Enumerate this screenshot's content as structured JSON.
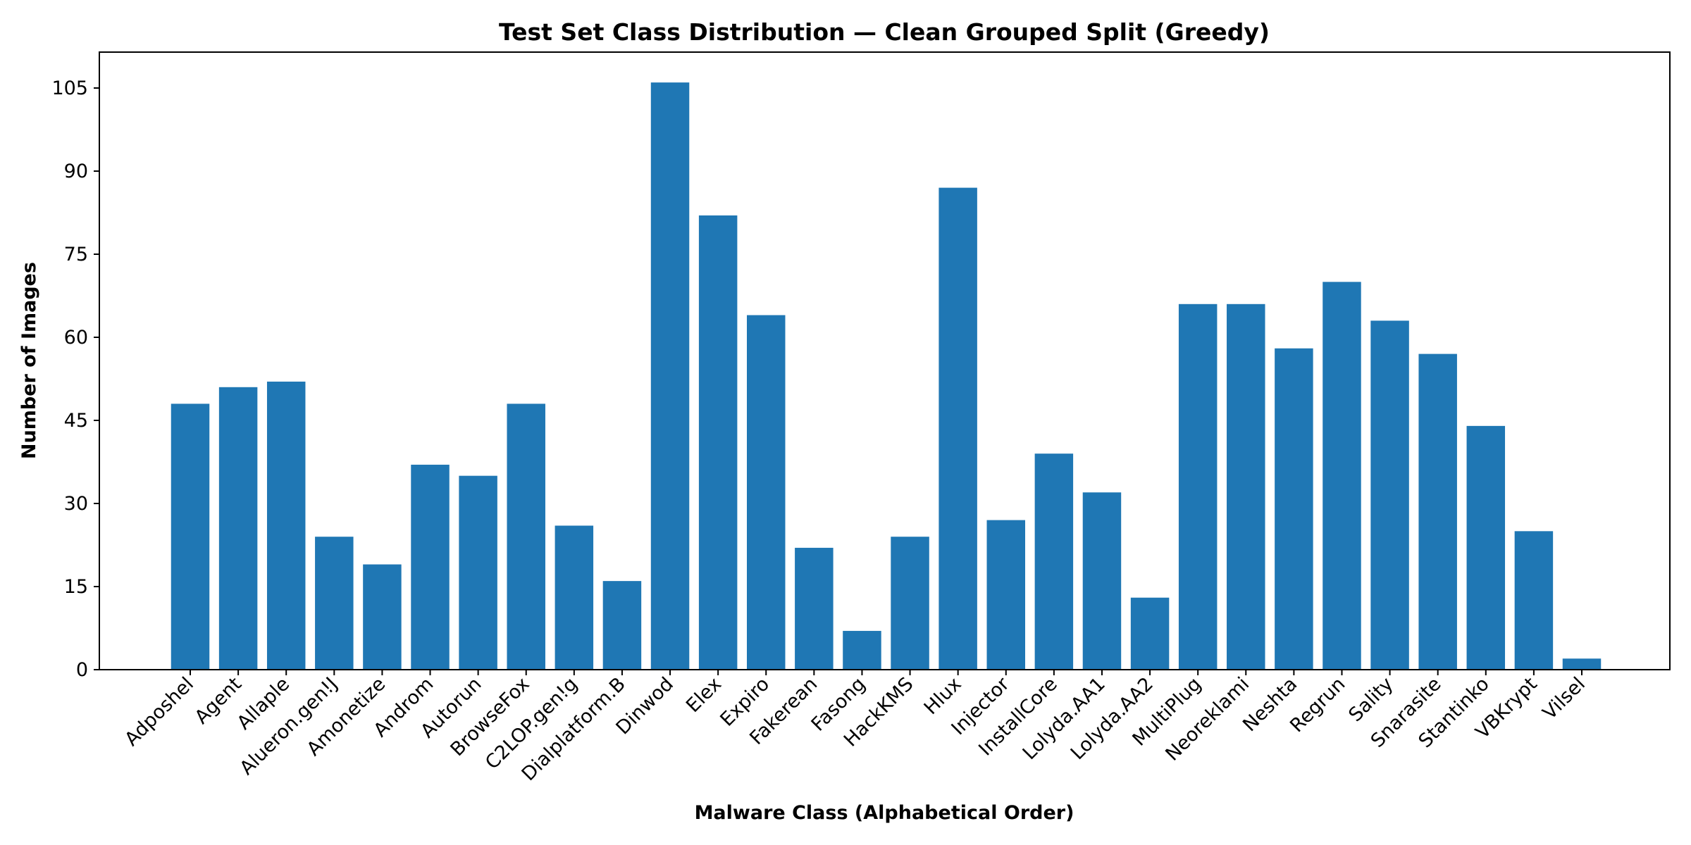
{
  "chart_data": {
    "type": "bar",
    "title": "Test Set Class Distribution — Clean Grouped Split (Greedy)",
    "xlabel": "Malware Class (Alphabetical Order)",
    "ylabel": "Number of Images",
    "ylim": [
      0,
      112
    ],
    "yticks": [
      0,
      15,
      30,
      45,
      60,
      75,
      90,
      105
    ],
    "bar_color": "#1f77b4",
    "grid": false,
    "categories": [
      "Adposhel",
      "Agent",
      "Allaple",
      "Alueron.gen!J",
      "Amonetize",
      "Androm",
      "Autorun",
      "BrowseFox",
      "C2LOP.gen!g",
      "Dialplatform.B",
      "Dinwod",
      "Elex",
      "Expiro",
      "Fakerean",
      "Fasong",
      "HackKMS",
      "Hlux",
      "Injector",
      "InstallCore",
      "Lolyda.AA1",
      "Lolyda.AA2",
      "MultiPlug",
      "Neoreklami",
      "Neshta",
      "Regrun",
      "Sality",
      "Snarasite",
      "Stantinko",
      "VBKrypt",
      "Vilsel"
    ],
    "values": [
      48,
      51,
      52,
      24,
      19,
      37,
      35,
      48,
      26,
      16,
      106,
      82,
      64,
      22,
      7,
      24,
      87,
      27,
      39,
      32,
      13,
      66,
      66,
      58,
      70,
      63,
      57,
      44,
      25,
      2
    ]
  }
}
